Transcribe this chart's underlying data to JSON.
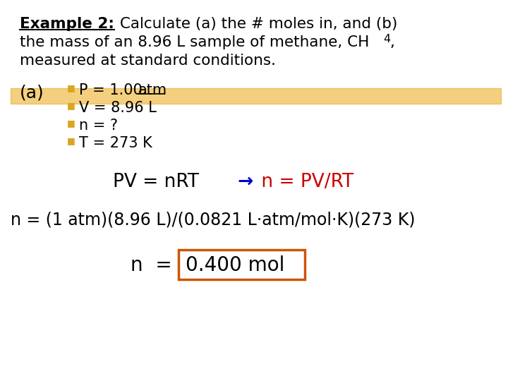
{
  "bg_color": "#ffffff",
  "highlight_color": "#E8A000",
  "highlight_alpha": 0.5,
  "bullet_color": "#DAA520",
  "bullet_char": "■",
  "box_color": "#CC5500",
  "font_family": "Comic Sans MS",
  "arrow_color": "#0000CC",
  "red_color": "#CC0000",
  "black_color": "#000000",
  "title_line1_bold": "Example 2:",
  "title_line1_rest": " Calculate (a) the # moles in, and (b)",
  "title_line2_pre": "the mass of an 8.96 L sample of methane, CH",
  "title_line2_sub": "4",
  "title_line2_post": ",",
  "title_line3": "measured at standard conditions.",
  "label_a": "(a)",
  "bullets": [
    "P = 1.00 atm",
    "V = 8.96 L",
    "n = ?",
    "T = 273 K"
  ],
  "eq_black": "PV = nRT",
  "eq_arrow": "→",
  "eq_red": "n = PV/RT",
  "eq2": "n = (1 atm)(8.96 L)/(0.0821 L·atm/mol·K)(273 K)",
  "result_pre": "n  =",
  "result_box_text": "0.400 mol",
  "title_fontsize": 15.5,
  "body_fontsize": 16,
  "bullet_fontsize": 15,
  "eq_fontsize": 19,
  "eq2_fontsize": 17,
  "result_fontsize": 20
}
